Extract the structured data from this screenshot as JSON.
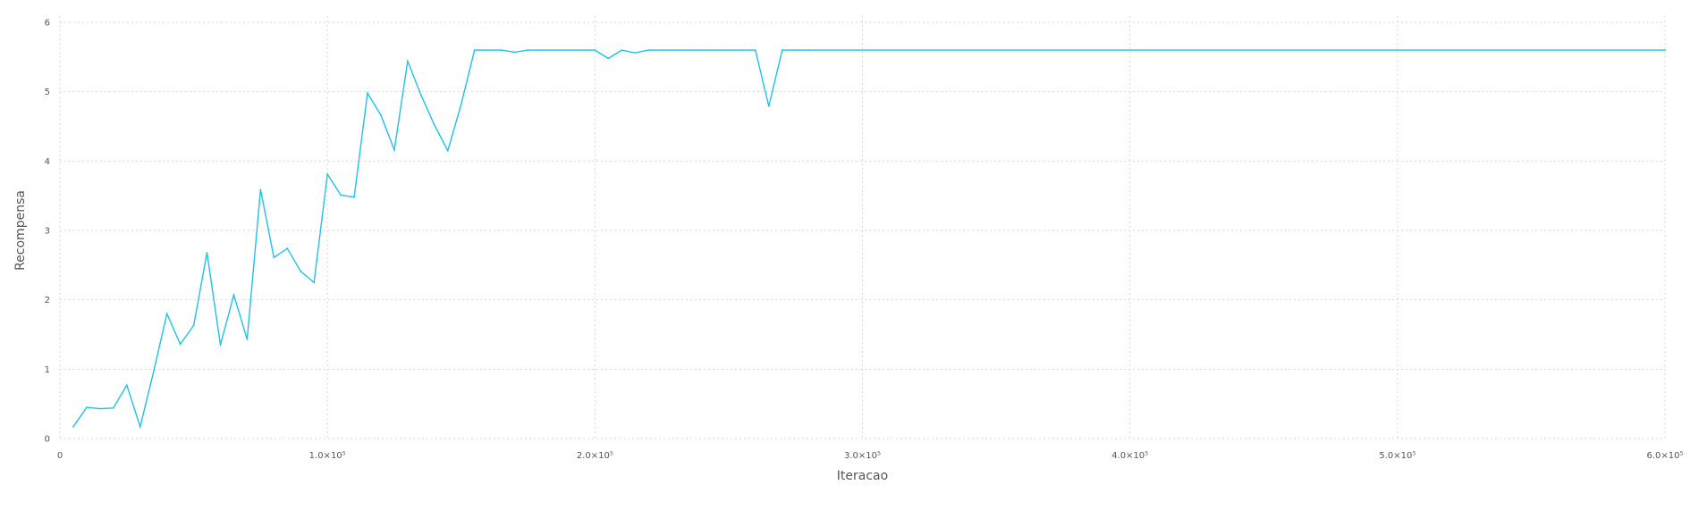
{
  "chart_data": {
    "type": "line",
    "title": "",
    "xlabel": "Iteracao",
    "ylabel": "Recompensa",
    "xlim": [
      0,
      600000
    ],
    "ylim": [
      0,
      6
    ],
    "grid": true,
    "x_ticks": [
      {
        "value": 0,
        "label": "0"
      },
      {
        "value": 100000,
        "label": "1.0×10⁵"
      },
      {
        "value": 200000,
        "label": "2.0×10⁵"
      },
      {
        "value": 300000,
        "label": "3.0×10⁵"
      },
      {
        "value": 400000,
        "label": "4.0×10⁵"
      },
      {
        "value": 500000,
        "label": "5.0×10⁵"
      },
      {
        "value": 600000,
        "label": "6.0×10⁵"
      }
    ],
    "y_ticks": [
      {
        "value": 0,
        "label": "0"
      },
      {
        "value": 1,
        "label": "1"
      },
      {
        "value": 2,
        "label": "2"
      },
      {
        "value": 3,
        "label": "3"
      },
      {
        "value": 4,
        "label": "4"
      },
      {
        "value": 5,
        "label": "5"
      },
      {
        "value": 6,
        "label": "6"
      }
    ],
    "series": [
      {
        "color": "#1fc1e6",
        "x": [
          5000,
          10000,
          15000,
          20000,
          25000,
          30000,
          35000,
          40000,
          45000,
          50000,
          55000,
          60000,
          65000,
          70000,
          75000,
          80000,
          85000,
          90000,
          95000,
          100000,
          105000,
          110000,
          115000,
          120000,
          125000,
          130000,
          135000,
          140000,
          145000,
          150000,
          155000,
          160000,
          165000,
          170000,
          175000,
          180000,
          185000,
          190000,
          195000,
          200000,
          205000,
          210000,
          215000,
          220000,
          225000,
          230000,
          235000,
          240000,
          245000,
          250000,
          255000,
          260000,
          265000,
          270000,
          275000,
          280000,
          600000
        ],
        "y": [
          0.17,
          0.45,
          0.43,
          0.44,
          0.77,
          0.17,
          0.96,
          1.8,
          1.36,
          1.63,
          2.68,
          1.35,
          2.07,
          1.43,
          3.59,
          2.61,
          2.74,
          2.41,
          2.25,
          3.81,
          3.51,
          3.48,
          4.98,
          4.66,
          4.16,
          5.44,
          4.95,
          4.52,
          4.15,
          4.82,
          5.6,
          5.6,
          5.6,
          5.57,
          5.6,
          5.6,
          5.6,
          5.6,
          5.6,
          5.6,
          5.48,
          5.6,
          5.56,
          5.6,
          5.6,
          5.6,
          5.6,
          5.6,
          5.6,
          5.6,
          5.6,
          5.6,
          4.79,
          5.6,
          5.6,
          5.6,
          5.6
        ]
      }
    ]
  }
}
